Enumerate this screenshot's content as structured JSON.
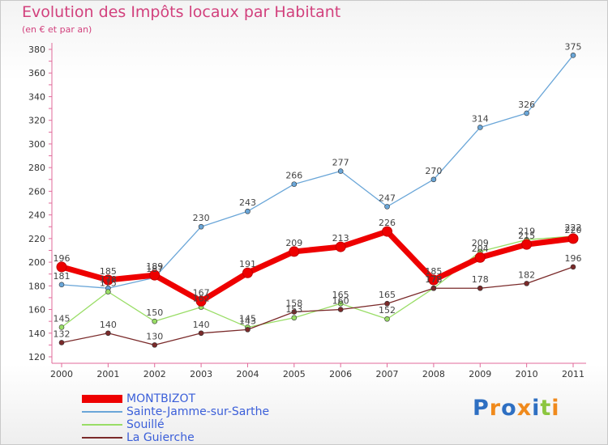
{
  "header": {
    "title": "Evolution des Impôts locaux par Habitant",
    "subtitle": "(en € et par an)"
  },
  "logo": {
    "text": "Proxiti"
  },
  "chart_data": {
    "type": "line",
    "title": "Evolution des Impôts locaux par Habitant",
    "subtitle": "(en € et par an)",
    "x": [
      "2000",
      "2001",
      "2002",
      "2003",
      "2004",
      "2005",
      "2006",
      "2007",
      "2008",
      "2009",
      "2010",
      "2011"
    ],
    "ylim": [
      120,
      380
    ],
    "yticks": [
      120,
      140,
      160,
      180,
      200,
      220,
      240,
      260,
      280,
      300,
      320,
      340,
      360,
      380
    ],
    "grid": false,
    "legend": "bottom-left",
    "series": [
      {
        "name": "MONTBIZOT",
        "color": "#ee0000",
        "values": [
          196,
          185,
          189,
          167,
          191,
          209,
          213,
          226,
          185,
          204,
          215,
          220
        ]
      },
      {
        "name": "Sainte-Jamme-sur-Sarthe",
        "color": "#6aa6d8",
        "values": [
          181,
          178,
          187,
          230,
          243,
          266,
          277,
          247,
          270,
          314,
          326,
          375
        ]
      },
      {
        "name": "Souillé",
        "color": "#99dd66",
        "values": [
          145,
          175,
          150,
          162,
          145,
          153,
          165,
          152,
          178,
          209,
          219,
          222
        ]
      },
      {
        "name": "La Guierche",
        "color": "#7a2a2a",
        "values": [
          132,
          140,
          130,
          140,
          143,
          158,
          160,
          165,
          178,
          178,
          182,
          196
        ]
      }
    ]
  }
}
